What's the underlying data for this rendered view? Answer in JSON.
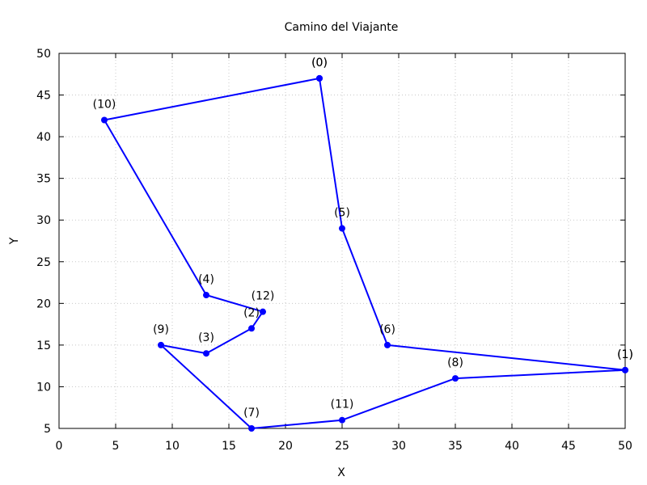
{
  "chart_data": {
    "type": "line",
    "title": "Camino del Viajante",
    "xlabel": "X",
    "ylabel": "Y",
    "xlim": [
      0,
      50
    ],
    "ylim": [
      5,
      50
    ],
    "xticks": [
      0,
      5,
      10,
      15,
      20,
      25,
      30,
      35,
      40,
      45,
      50
    ],
    "yticks": [
      5,
      10,
      15,
      20,
      25,
      30,
      35,
      40,
      45,
      50
    ],
    "grid": true,
    "color": "#0000ff",
    "points": [
      {
        "label": "(0)",
        "x": 23,
        "y": 47
      },
      {
        "label": "(1)",
        "x": 50,
        "y": 12
      },
      {
        "label": "(2)",
        "x": 17,
        "y": 17
      },
      {
        "label": "(3)",
        "x": 13,
        "y": 14
      },
      {
        "label": "(4)",
        "x": 13,
        "y": 21
      },
      {
        "label": "(5)",
        "x": 25,
        "y": 29
      },
      {
        "label": "(6)",
        "x": 29,
        "y": 15
      },
      {
        "label": "(7)",
        "x": 17,
        "y": 5
      },
      {
        "label": "(8)",
        "x": 35,
        "y": 11
      },
      {
        "label": "(9)",
        "x": 9,
        "y": 15
      },
      {
        "label": "(10)",
        "x": 4,
        "y": 42
      },
      {
        "label": "(11)",
        "x": 25,
        "y": 6
      },
      {
        "label": "(12)",
        "x": 18,
        "y": 19
      }
    ],
    "route": [
      {
        "label": "(0)",
        "x": 23,
        "y": 47
      },
      {
        "label": "(5)",
        "x": 25,
        "y": 29
      },
      {
        "label": "(6)",
        "x": 29,
        "y": 15
      },
      {
        "label": "(1)",
        "x": 50,
        "y": 12
      },
      {
        "label": "(1)",
        "x": 50,
        "y": 12
      },
      {
        "label": "(8)",
        "x": 35,
        "y": 11
      },
      {
        "label": "(11)",
        "x": 25,
        "y": 6
      },
      {
        "label": "(7)",
        "x": 17,
        "y": 5
      },
      {
        "label": "(9)",
        "x": 9,
        "y": 15
      },
      {
        "label": "(3)",
        "x": 13,
        "y": 14
      },
      {
        "label": "(2)",
        "x": 17,
        "y": 17
      },
      {
        "label": "(12)",
        "x": 18,
        "y": 19
      },
      {
        "label": "(4)",
        "x": 13,
        "y": 21
      },
      {
        "label": "(10)",
        "x": 4,
        "y": 42
      },
      {
        "label": "(0)",
        "x": 23,
        "y": 47
      }
    ]
  }
}
